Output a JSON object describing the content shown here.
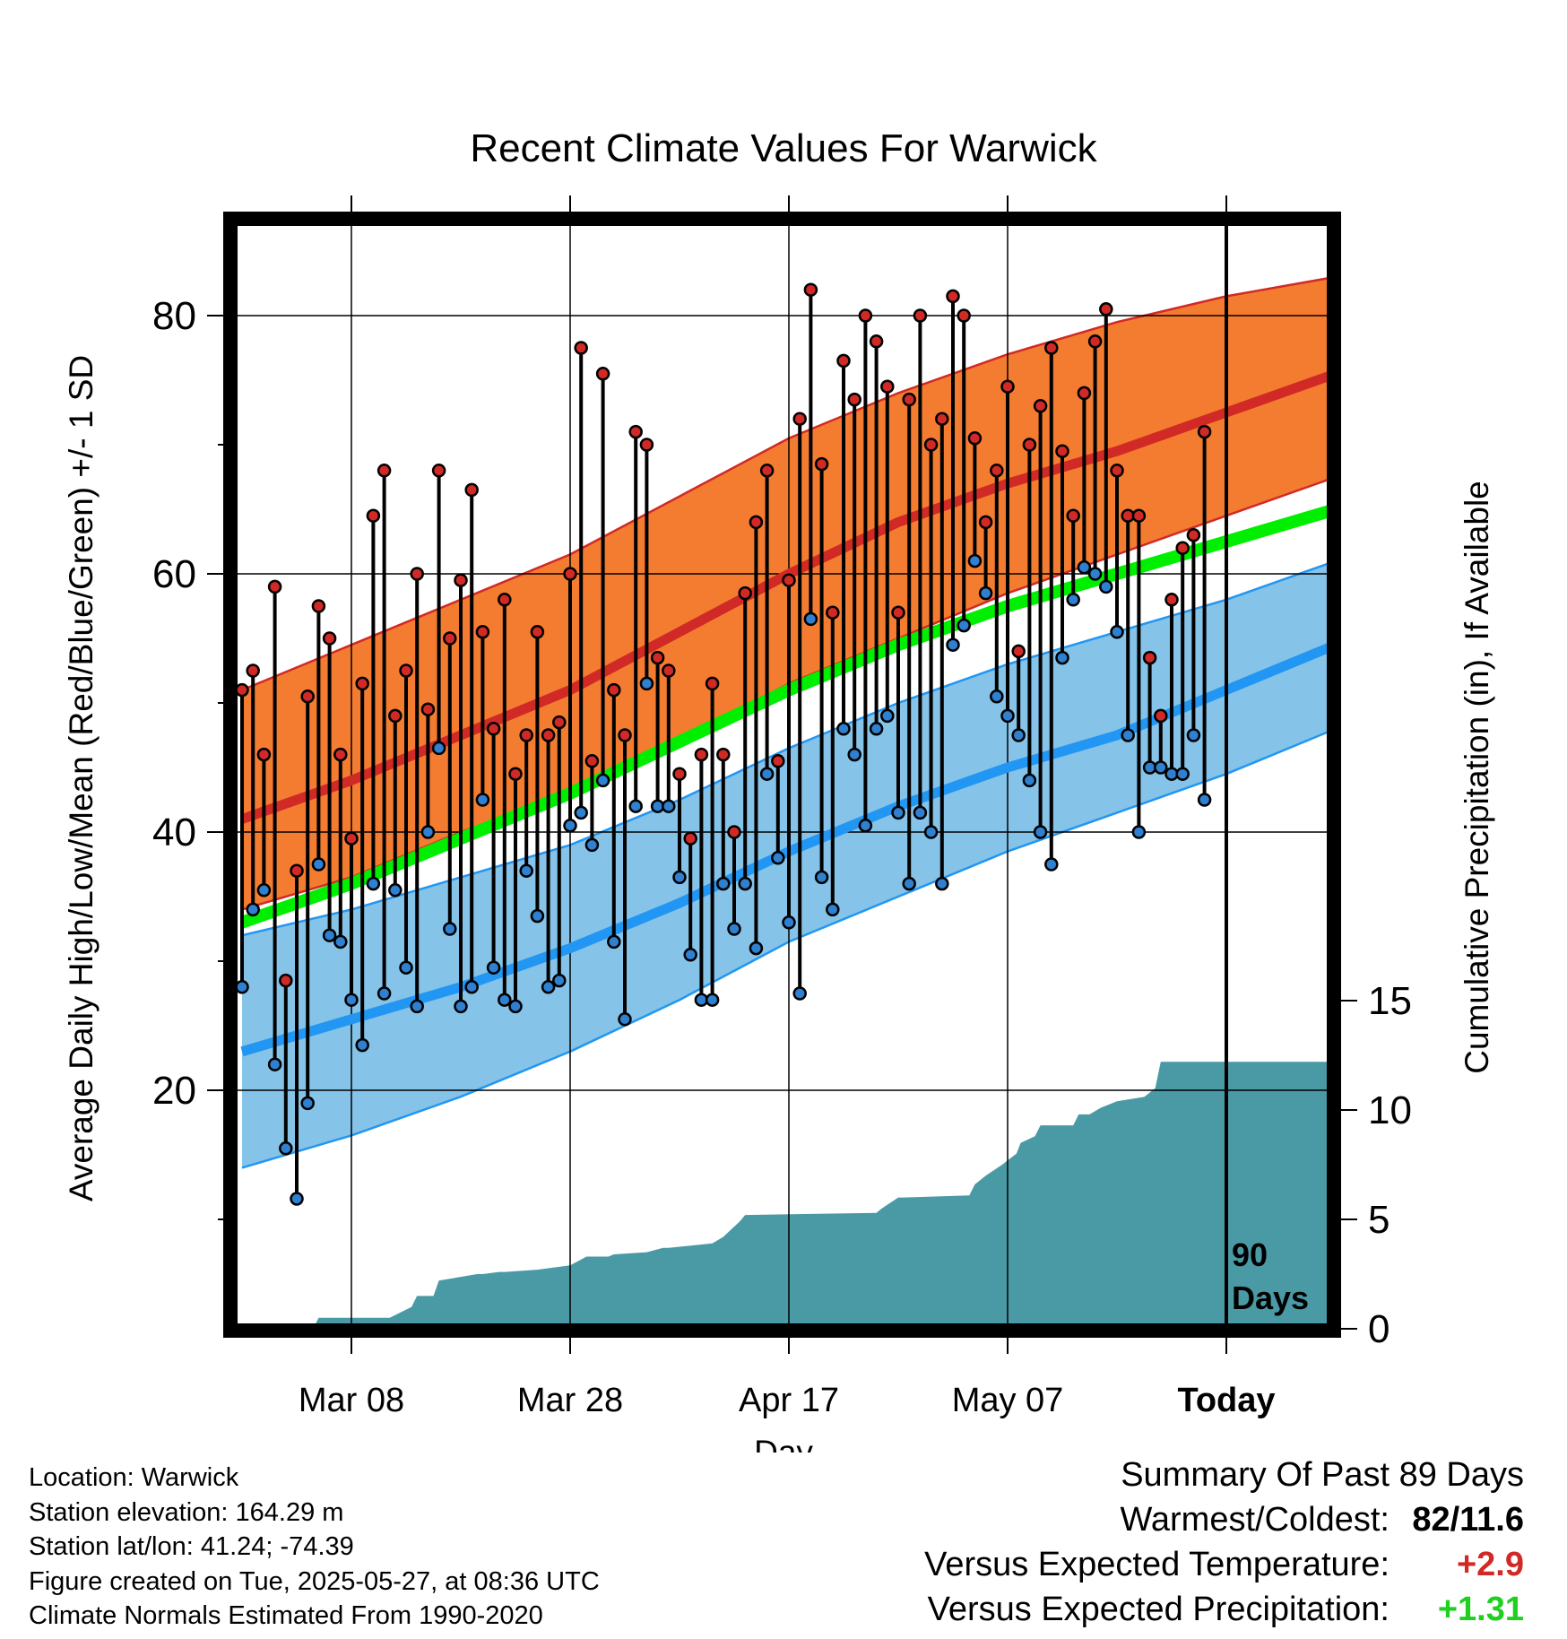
{
  "chart_data": {
    "type": "line",
    "title": "Recent Climate Values For Warwick",
    "xlabel": "Day",
    "ylabel_left": "Average Daily High/Low/Mean (Red/Blue/Green) +/- 1 SD",
    "ylabel_right": "Cumulative Precipitation (in), If Available",
    "x_range": [
      -0.5,
      100.5
    ],
    "ylim_left": [
      2.5,
      88
    ],
    "yticks_left_major": [
      20,
      40,
      60,
      80
    ],
    "yticks_left_minor": [
      10,
      30,
      50,
      70
    ],
    "ylim_right": [
      0,
      15
    ],
    "yticks_right": [
      0,
      5,
      10,
      15
    ],
    "x_ticks": [
      {
        "day": 10,
        "label": "Mar 08"
      },
      {
        "day": 30,
        "label": "Mar 28"
      },
      {
        "day": 50,
        "label": "Apr 17"
      },
      {
        "day": 70,
        "label": "May 07"
      },
      {
        "day": 90,
        "label": "Today"
      }
    ],
    "today_day": 90,
    "today_annotation": [
      "90",
      "Days"
    ],
    "grid": true,
    "normals": {
      "x": [
        0,
        10,
        20,
        30,
        40,
        50,
        60,
        70,
        80,
        90,
        100
      ],
      "high_mean": [
        41,
        44,
        47.5,
        51,
        55.5,
        60,
        64,
        67,
        69.5,
        72.5,
        75.5
      ],
      "high_upper": [
        51,
        54.5,
        58,
        61.5,
        66,
        70.5,
        74,
        77,
        79.5,
        81.5,
        83
      ],
      "high_lower": [
        34,
        36.5,
        40,
        43,
        47,
        51.5,
        55,
        58.5,
        61.5,
        64.5,
        67.5
      ],
      "mean": [
        33,
        36,
        39.5,
        43,
        47,
        51,
        54.5,
        57.5,
        60,
        62.5,
        65
      ],
      "low_mean": [
        23,
        25.5,
        28,
        31,
        34.5,
        38.5,
        42,
        45,
        47.5,
        51,
        54.5
      ],
      "low_upper": [
        32,
        34,
        36.5,
        39,
        42.5,
        46.5,
        50,
        53,
        55.5,
        58,
        61
      ],
      "low_lower": [
        14,
        16.5,
        19.5,
        23,
        27,
        31.5,
        35,
        38.5,
        41.5,
        44.5,
        48
      ]
    },
    "series": [
      {
        "name": "High",
        "values": [
          51,
          52.5,
          46,
          59,
          28.5,
          37,
          50.5,
          57.5,
          55,
          46,
          39.5,
          51.5,
          64.5,
          68,
          49,
          52.5,
          60,
          49.5,
          68,
          55,
          59.5,
          66.5,
          55.5,
          48,
          58,
          44.5,
          47.5,
          55.5,
          47.5,
          48.5,
          60,
          77.5,
          45.5,
          75.5,
          51,
          47.5,
          71,
          70,
          53.5,
          52.5,
          44.5,
          39.5,
          46,
          51.5,
          46,
          40,
          58.5,
          64,
          68,
          45.5,
          59.5,
          72,
          82,
          68.5,
          57,
          76.5,
          73.5,
          80,
          78,
          74.5,
          57,
          73.5,
          80,
          70,
          72,
          81.5,
          80,
          70.5,
          64,
          68,
          74.5,
          54,
          70,
          73,
          77.5,
          69.5,
          64.5,
          74,
          78,
          80.5,
          68,
          64.5,
          64.5,
          53.5,
          49,
          58,
          62,
          63,
          71
        ]
      },
      {
        "name": "Low",
        "values": [
          28,
          34,
          35.5,
          22,
          15.5,
          11.6,
          19,
          37.5,
          32,
          31.5,
          27,
          23.5,
          36,
          27.5,
          35.5,
          29.5,
          26.5,
          40,
          46.5,
          32.5,
          26.5,
          28,
          42.5,
          29.5,
          27,
          26.5,
          37,
          33.5,
          28,
          28.5,
          40.5,
          41.5,
          39,
          44,
          31.5,
          25.5,
          42,
          51.5,
          42,
          42,
          36.5,
          30.5,
          27,
          27,
          36,
          32.5,
          36,
          31,
          44.5,
          38,
          33,
          27.5,
          56.5,
          36.5,
          34,
          48,
          46,
          40.5,
          48,
          49,
          41.5,
          36,
          41.5,
          40,
          36,
          54.5,
          56,
          61,
          58.5,
          50.5,
          49,
          47.5,
          44,
          40,
          37.5,
          53.5,
          58,
          60.5,
          60,
          59,
          55.5,
          47.5,
          40,
          45,
          45,
          44.5,
          44.5,
          47.5,
          42.5
        ]
      }
    ],
    "precip_cumulative": {
      "x": [
        6.5,
        7,
        13.5,
        15.5,
        16,
        17.5,
        18,
        21.5,
        22,
        23.5,
        24,
        27,
        30,
        31.5,
        33.5,
        34,
        37,
        38.5,
        39,
        43,
        44,
        45.5,
        46,
        58,
        58.5,
        60,
        60.5,
        66.5,
        67,
        68,
        69.5,
        70,
        70.8,
        71.2,
        72.5,
        73,
        76,
        76.5,
        77.5,
        78.5,
        80,
        82.5,
        83.5,
        84,
        90,
        100
      ],
      "y": [
        0,
        0.5,
        0.5,
        1.0,
        1.5,
        1.5,
        2.2,
        2.5,
        2.5,
        2.6,
        2.6,
        2.7,
        2.9,
        3.3,
        3.3,
        3.4,
        3.5,
        3.7,
        3.7,
        3.9,
        4.2,
        4.9,
        5.2,
        5.3,
        5.5,
        6.0,
        6.0,
        6.1,
        6.6,
        7.0,
        7.5,
        7.7,
        8.0,
        8.5,
        8.8,
        9.3,
        9.3,
        9.8,
        9.8,
        10.1,
        10.4,
        10.6,
        11.0,
        12.2,
        12.2,
        12.2
      ]
    },
    "colors": {
      "high_band": "#f47c30",
      "high_line": "#d12a26",
      "low_band": "#86c3e8",
      "low_line": "#2196f3",
      "mean_line": "#00ee00",
      "precip": "#4a9aa5",
      "high_dot": "#d12a26",
      "low_dot": "#2f80d0"
    }
  },
  "footer": {
    "location": "Location: Warwick",
    "elevation": "Station elevation: 164.29 m",
    "latlon": "Station lat/lon: 41.24; -74.39",
    "created": "Figure created on Tue, 2025-05-27, at 08:36 UTC",
    "normals": "Climate Normals Estimated From 1990-2020"
  },
  "summary": {
    "heading": "Summary Of Past 89 Days",
    "warm_cold_label": "Warmest/Coldest:",
    "warm_cold_value": "82/11.6",
    "temp_label": "Versus Expected Temperature:",
    "temp_value": "+2.9",
    "temp_color": "#d12a26",
    "precip_label": "Versus Expected Precipitation:",
    "precip_value": "+1.31",
    "precip_color": "#1fd01f"
  }
}
